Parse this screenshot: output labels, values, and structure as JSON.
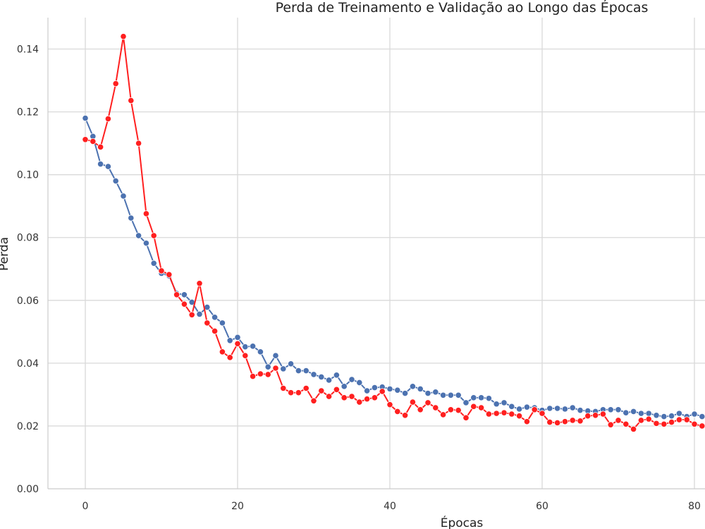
{
  "chart_data": {
    "type": "line",
    "title": "Perda de Treinamento e Validação ao Longo das Épocas",
    "xlabel": "Épocas",
    "ylabel": "Perda",
    "xlim": [
      -5,
      81
    ],
    "ylim": [
      0,
      0.15
    ],
    "xticks": [
      0,
      20,
      40,
      60,
      80
    ],
    "yticks": [
      0.0,
      0.02,
      0.04,
      0.06,
      0.08,
      0.1,
      0.12,
      0.14
    ],
    "xtick_labels": [
      "0",
      "20",
      "40",
      "60",
      "80"
    ],
    "ytick_labels": [
      "0.00",
      "0.02",
      "0.04",
      "0.06",
      "0.08",
      "0.10",
      "0.12",
      "0.14"
    ],
    "grid": true,
    "series": [
      {
        "color": "#4c72b0",
        "marker": "circle",
        "x": [
          0,
          1,
          2,
          3,
          4,
          5,
          6,
          7,
          8,
          9,
          10,
          11,
          12,
          13,
          14,
          15,
          16,
          17,
          18,
          19,
          20,
          21,
          22,
          23,
          24,
          25,
          26,
          27,
          28,
          29,
          30,
          31,
          32,
          33,
          34,
          35,
          36,
          37,
          38,
          39,
          40,
          41,
          42,
          43,
          44,
          45,
          46,
          47,
          48,
          49,
          50,
          51,
          52,
          53,
          54,
          55,
          56,
          57,
          58,
          59,
          60,
          61,
          62,
          63,
          64,
          65,
          66,
          67,
          68,
          69,
          70,
          71,
          72,
          73,
          74,
          75,
          76,
          77,
          78,
          79,
          80,
          81
        ],
        "values": [
          0.118,
          0.1122,
          0.1034,
          0.1026,
          0.098,
          0.0932,
          0.0862,
          0.0806,
          0.0782,
          0.0718,
          0.0686,
          0.0678,
          0.0622,
          0.0618,
          0.0594,
          0.0556,
          0.0578,
          0.0546,
          0.0528,
          0.0472,
          0.0482,
          0.0452,
          0.0454,
          0.0436,
          0.0388,
          0.0424,
          0.0382,
          0.0398,
          0.0376,
          0.0376,
          0.0364,
          0.0356,
          0.0346,
          0.0362,
          0.0326,
          0.0348,
          0.0338,
          0.0312,
          0.0322,
          0.0324,
          0.0318,
          0.0314,
          0.0304,
          0.0326,
          0.0318,
          0.0304,
          0.0308,
          0.0298,
          0.0298,
          0.0298,
          0.0274,
          0.029,
          0.029,
          0.0288,
          0.027,
          0.0274,
          0.0262,
          0.0254,
          0.026,
          0.0258,
          0.025,
          0.0256,
          0.0256,
          0.0254,
          0.0258,
          0.025,
          0.0248,
          0.0246,
          0.0252,
          0.0252,
          0.0252,
          0.0242,
          0.0246,
          0.024,
          0.024,
          0.0234,
          0.023,
          0.0232,
          0.024,
          0.023,
          0.0238,
          0.023
        ]
      },
      {
        "color": "#ff1f1f",
        "marker": "circle",
        "x": [
          0,
          1,
          2,
          3,
          4,
          5,
          6,
          7,
          8,
          9,
          10,
          11,
          12,
          13,
          14,
          15,
          16,
          17,
          18,
          19,
          20,
          21,
          22,
          23,
          24,
          25,
          26,
          27,
          28,
          29,
          30,
          31,
          32,
          33,
          34,
          35,
          36,
          37,
          38,
          39,
          40,
          41,
          42,
          43,
          44,
          45,
          46,
          47,
          48,
          49,
          50,
          51,
          52,
          53,
          54,
          55,
          56,
          57,
          58,
          59,
          60,
          61,
          62,
          63,
          64,
          65,
          66,
          67,
          68,
          69,
          70,
          71,
          72,
          73,
          74,
          75,
          76,
          77,
          78,
          79,
          80,
          81
        ],
        "values": [
          0.1112,
          0.1106,
          0.1088,
          0.1178,
          0.129,
          0.144,
          0.1236,
          0.11,
          0.0876,
          0.0806,
          0.0694,
          0.0682,
          0.0618,
          0.0588,
          0.0554,
          0.0654,
          0.0528,
          0.0502,
          0.0436,
          0.0418,
          0.0462,
          0.0424,
          0.0358,
          0.0366,
          0.0364,
          0.0384,
          0.032,
          0.0306,
          0.0306,
          0.032,
          0.028,
          0.0312,
          0.0294,
          0.0316,
          0.029,
          0.0294,
          0.0276,
          0.0286,
          0.029,
          0.031,
          0.0268,
          0.0246,
          0.0234,
          0.0276,
          0.0252,
          0.0274,
          0.0258,
          0.0236,
          0.0252,
          0.025,
          0.0226,
          0.0262,
          0.0258,
          0.0238,
          0.024,
          0.0242,
          0.0238,
          0.0232,
          0.0214,
          0.0252,
          0.024,
          0.0212,
          0.021,
          0.0214,
          0.0218,
          0.0216,
          0.0232,
          0.0234,
          0.0238,
          0.0204,
          0.0218,
          0.0206,
          0.019,
          0.0218,
          0.0222,
          0.0208,
          0.0206,
          0.0212,
          0.022,
          0.022,
          0.0206,
          0.02
        ]
      }
    ]
  }
}
